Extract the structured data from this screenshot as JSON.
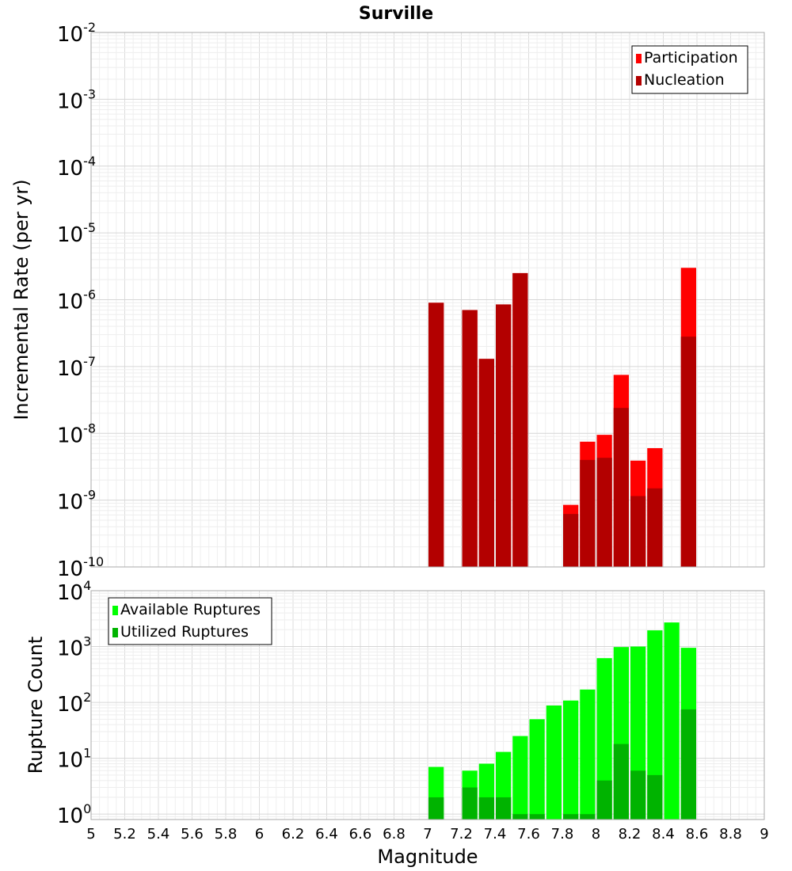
{
  "chart_data": {
    "type": "bar",
    "title": "Surville",
    "xlabel": "Magnitude",
    "xlim": [
      5,
      9
    ],
    "xticks": [
      "5",
      "5.2",
      "5.4",
      "5.6",
      "5.8",
      "6",
      "6.2",
      "6.4",
      "6.6",
      "6.8",
      "7",
      "7.2",
      "7.4",
      "7.6",
      "7.8",
      "8",
      "8.2",
      "8.4",
      "8.6",
      "8.8",
      "9"
    ],
    "bin_width": 0.1,
    "grid": true,
    "panels": [
      {
        "name": "rates",
        "ylabel": "Incremental Rate (per yr)",
        "yscale": "log",
        "ylim": [
          1e-10,
          0.01
        ],
        "ytick_exponents": [
          -2,
          -3,
          -4,
          -5,
          -6,
          -7,
          -8,
          -9,
          -10
        ],
        "legend_position": "top-right",
        "series": [
          {
            "name": "Participation",
            "color": "#ff0000",
            "points": [
              {
                "x": 7.05,
                "y": 9e-07
              },
              {
                "x": 7.25,
                "y": 7e-07
              },
              {
                "x": 7.35,
                "y": 1.3e-07
              },
              {
                "x": 7.45,
                "y": 8.5e-07
              },
              {
                "x": 7.55,
                "y": 2.5e-06
              },
              {
                "x": 7.85,
                "y": 8.5e-10
              },
              {
                "x": 7.95,
                "y": 7.5e-09
              },
              {
                "x": 8.05,
                "y": 9.5e-09
              },
              {
                "x": 8.15,
                "y": 7.5e-08
              },
              {
                "x": 8.25,
                "y": 3.9e-09
              },
              {
                "x": 8.35,
                "y": 6e-09
              },
              {
                "x": 8.55,
                "y": 3e-06
              }
            ]
          },
          {
            "name": "Nucleation",
            "color": "#b30000",
            "points": [
              {
                "x": 7.05,
                "y": 9e-07
              },
              {
                "x": 7.25,
                "y": 7e-07
              },
              {
                "x": 7.35,
                "y": 1.3e-07
              },
              {
                "x": 7.45,
                "y": 8.5e-07
              },
              {
                "x": 7.55,
                "y": 2.5e-06
              },
              {
                "x": 7.85,
                "y": 6.2e-10
              },
              {
                "x": 7.95,
                "y": 4e-09
              },
              {
                "x": 8.05,
                "y": 4.3e-09
              },
              {
                "x": 8.15,
                "y": 2.4e-08
              },
              {
                "x": 8.25,
                "y": 1.15e-09
              },
              {
                "x": 8.35,
                "y": 1.5e-09
              },
              {
                "x": 8.55,
                "y": 2.8e-07
              }
            ]
          }
        ]
      },
      {
        "name": "counts",
        "ylabel": "Rupture Count",
        "yscale": "log",
        "ylim": [
          0.8,
          10000
        ],
        "ytick_exponents": [
          4,
          3,
          2,
          1,
          0
        ],
        "legend_position": "top-left",
        "series": [
          {
            "name": "Available Ruptures",
            "color": "#00ff00",
            "points": [
              {
                "x": 7.05,
                "y": 7
              },
              {
                "x": 7.25,
                "y": 6
              },
              {
                "x": 7.35,
                "y": 8
              },
              {
                "x": 7.45,
                "y": 13
              },
              {
                "x": 7.55,
                "y": 25
              },
              {
                "x": 7.65,
                "y": 50
              },
              {
                "x": 7.75,
                "y": 88
              },
              {
                "x": 7.85,
                "y": 108
              },
              {
                "x": 7.95,
                "y": 170
              },
              {
                "x": 8.05,
                "y": 620
              },
              {
                "x": 8.15,
                "y": 980
              },
              {
                "x": 8.25,
                "y": 1000
              },
              {
                "x": 8.35,
                "y": 1950
              },
              {
                "x": 8.45,
                "y": 2700
              },
              {
                "x": 8.55,
                "y": 950
              }
            ]
          },
          {
            "name": "Utilized Ruptures",
            "color": "#00b300",
            "points": [
              {
                "x": 7.05,
                "y": 2
              },
              {
                "x": 7.25,
                "y": 3
              },
              {
                "x": 7.35,
                "y": 2
              },
              {
                "x": 7.45,
                "y": 2
              },
              {
                "x": 7.55,
                "y": 1
              },
              {
                "x": 7.65,
                "y": 1
              },
              {
                "x": 7.85,
                "y": 1
              },
              {
                "x": 7.95,
                "y": 1
              },
              {
                "x": 8.05,
                "y": 4
              },
              {
                "x": 8.15,
                "y": 18
              },
              {
                "x": 8.25,
                "y": 6
              },
              {
                "x": 8.35,
                "y": 5
              },
              {
                "x": 8.55,
                "y": 75
              }
            ]
          }
        ]
      }
    ]
  }
}
